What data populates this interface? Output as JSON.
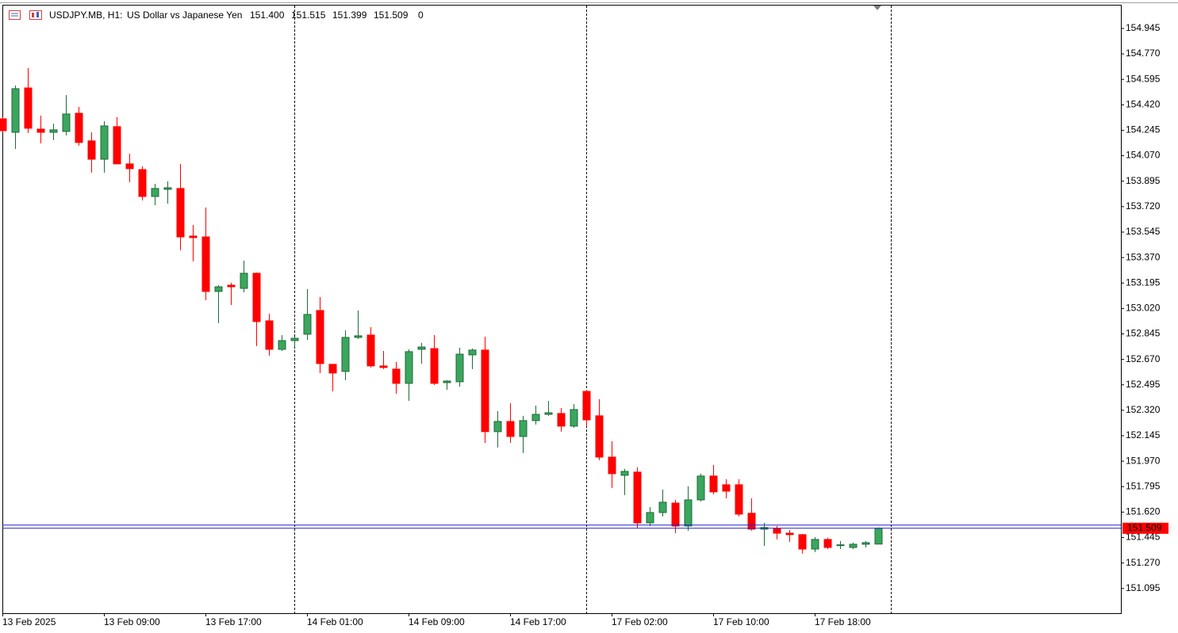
{
  "chart_data": {
    "type": "candlestick",
    "info": {
      "symbol": "USDJPY.MB, H1:",
      "description": "US Dollar vs Japanese Yen",
      "ohlc_labels": [
        "151.400",
        "151.515",
        "151.399",
        "151.509"
      ],
      "volume": 0
    },
    "categories": [
      "13 Feb 2025",
      null,
      null,
      null,
      null,
      null,
      null,
      null,
      "13 Feb 09:00",
      null,
      null,
      null,
      null,
      null,
      null,
      null,
      "13 Feb 17:00",
      null,
      null,
      null,
      null,
      null,
      null,
      null,
      "14 Feb 01:00",
      null,
      null,
      null,
      null,
      null,
      null,
      null,
      "14 Feb 09:00",
      null,
      null,
      null,
      null,
      null,
      null,
      null,
      "14 Feb 17:00",
      null,
      null,
      null,
      null,
      null,
      null,
      null,
      "17 Feb 02:00",
      null,
      null,
      null,
      null,
      null,
      null,
      null,
      "17 Feb 10:00",
      null,
      null,
      null,
      null,
      null,
      null,
      null,
      "17 Feb 18:00",
      null,
      null,
      null,
      null,
      null
    ],
    "open": [
      154.324,
      154.231,
      154.536,
      154.253,
      154.231,
      154.237,
      154.362,
      154.172,
      154.046,
      154.27,
      154.014,
      153.975,
      153.79,
      153.839,
      153.845,
      153.518,
      153.512,
      153.137,
      153.18,
      153.158,
      153.262,
      152.935,
      152.739,
      152.799,
      152.843,
      153.006,
      152.636,
      152.587,
      152.821,
      152.837,
      152.625,
      152.603,
      152.505,
      152.739,
      152.744,
      152.51,
      152.516,
      152.701,
      152.734,
      152.173,
      152.243,
      152.14,
      152.249,
      152.292,
      152.298,
      152.211,
      152.45,
      152.282,
      151.998,
      151.873,
      151.895,
      151.546,
      151.617,
      151.682,
      151.524,
      151.704,
      151.868,
      151.808,
      151.808,
      151.612,
      151.503,
      151.508,
      151.475,
      151.465,
      151.366,
      151.432,
      151.394,
      151.377,
      151.399,
      151.4
    ],
    "high": [
      154.335,
      154.553,
      154.673,
      154.346,
      154.291,
      154.487,
      154.406,
      154.231,
      154.308,
      154.335,
      154.084,
      153.997,
      153.877,
      153.894,
      154.014,
      153.594,
      153.714,
      153.18,
      153.197,
      153.349,
      153.267,
      152.984,
      152.837,
      152.826,
      153.153,
      153.099,
      152.636,
      152.87,
      153.006,
      152.892,
      152.728,
      152.652,
      152.739,
      152.783,
      152.837,
      152.527,
      152.75,
      152.744,
      152.826,
      152.314,
      152.369,
      152.282,
      152.352,
      152.385,
      152.336,
      152.363,
      152.461,
      152.396,
      152.107,
      151.917,
      151.928,
      151.655,
      151.775,
      151.704,
      151.797,
      151.884,
      151.944,
      151.846,
      151.846,
      151.715,
      151.546,
      151.524,
      151.497,
      151.47,
      151.448,
      151.443,
      151.421,
      151.41,
      151.421,
      151.515
    ],
    "low": [
      154.231,
      154.117,
      154.226,
      154.155,
      154.177,
      154.21,
      154.139,
      153.954,
      153.954,
      154.014,
      153.888,
      153.763,
      153.73,
      153.741,
      153.42,
      153.344,
      153.077,
      152.919,
      153.044,
      153.131,
      152.761,
      152.695,
      152.728,
      152.755,
      152.804,
      152.576,
      152.45,
      152.527,
      152.81,
      152.614,
      152.603,
      152.434,
      152.385,
      152.641,
      152.494,
      152.461,
      152.483,
      152.603,
      152.096,
      152.064,
      152.096,
      152.026,
      152.222,
      152.282,
      152.173,
      152.2,
      152.211,
      151.977,
      151.786,
      151.737,
      151.508,
      151.524,
      151.59,
      151.475,
      151.492,
      151.693,
      151.742,
      151.715,
      151.59,
      151.492,
      151.388,
      151.432,
      151.416,
      151.334,
      151.345,
      151.366,
      151.366,
      151.366,
      151.377,
      151.399
    ],
    "close": [
      154.242,
      154.531,
      154.259,
      154.231,
      154.248,
      154.357,
      154.161,
      154.046,
      154.275,
      154.014,
      153.981,
      153.79,
      153.845,
      153.85,
      153.512,
      153.507,
      153.137,
      153.169,
      153.169,
      153.262,
      152.93,
      152.739,
      152.799,
      152.815,
      152.979,
      152.641,
      152.576,
      152.821,
      152.832,
      152.625,
      152.614,
      152.505,
      152.723,
      152.755,
      152.505,
      152.521,
      152.706,
      152.734,
      152.173,
      152.243,
      152.14,
      152.249,
      152.292,
      152.303,
      152.211,
      152.325,
      152.254,
      151.998,
      151.884,
      151.9,
      151.546,
      151.617,
      151.688,
      151.524,
      151.704,
      151.868,
      151.759,
      151.764,
      151.606,
      151.503,
      151.514,
      151.475,
      151.465,
      151.366,
      151.432,
      151.377,
      151.395,
      151.399,
      151.41,
      151.509
    ],
    "up_color": "#3ba65e",
    "up_border": "#1e6b38",
    "down_color": "#ff0000",
    "bid": {
      "value": 151.509,
      "label": "151.509"
    },
    "bid_label_color": "#ff0000",
    "ask": 151.531,
    "line_color": "#2323c8",
    "ylim": [
      150.925,
      155.108
    ],
    "yticks": [
      154.945,
      {
        "value": 154.77,
        "label": "154.770"
      },
      154.595,
      {
        "value": 154.42,
        "label": "154.420"
      },
      154.245,
      {
        "value": 154.07,
        "label": "154.070"
      },
      153.895,
      {
        "value": 153.72,
        "label": "153.720"
      },
      153.545,
      {
        "value": 153.37,
        "label": "153.370"
      },
      153.195,
      {
        "value": 153.02,
        "label": "153.020"
      },
      152.845,
      {
        "value": 152.67,
        "label": "152.670"
      },
      152.495,
      {
        "value": 152.32,
        "label": "152.320"
      },
      152.145,
      {
        "value": 151.97,
        "label": "151.970"
      },
      151.795,
      {
        "value": 151.62,
        "label": "151.620"
      },
      151.445,
      {
        "value": 151.27,
        "label": "151.270"
      },
      151.095
    ]
  }
}
